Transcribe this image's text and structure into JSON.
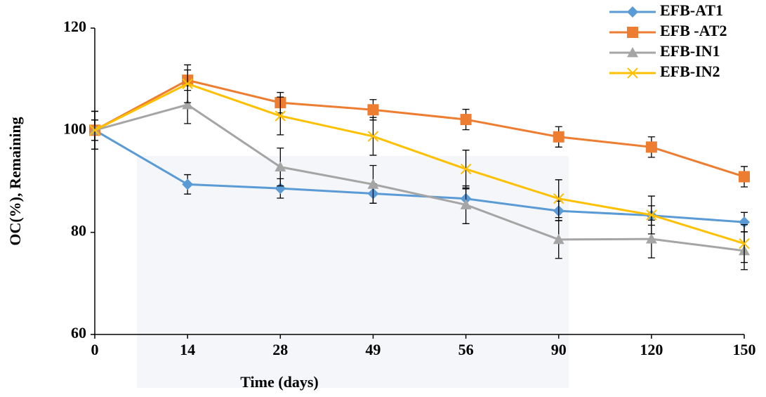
{
  "chart_data": {
    "type": "line",
    "x_label": "Time (days)",
    "y_label": "OC(%), Remaining",
    "categories": [
      "0",
      "14",
      "28",
      "49",
      "56",
      "90",
      "120",
      "150"
    ],
    "ylim": [
      60,
      120
    ],
    "yticks": [
      60,
      80,
      100,
      120
    ],
    "grid": false,
    "legend": "top-right",
    "series": [
      {
        "name": "EFB-AT1",
        "color": "#5b9bd5",
        "marker": "diamond",
        "values": [
          100,
          89.4,
          88.6,
          87.6,
          86.6,
          84.2,
          83.3,
          82.0
        ],
        "errors": [
          2,
          1.9,
          1.9,
          1.9,
          1.9,
          1.9,
          1.9,
          1.9
        ]
      },
      {
        "name": "EFB -AT2",
        "color": "#ed7d31",
        "marker": "square",
        "values": [
          100,
          109.8,
          105.4,
          104.0,
          102.1,
          98.7,
          96.7,
          90.9
        ],
        "errors": [
          2,
          2,
          2,
          2,
          2,
          2,
          2,
          2
        ]
      },
      {
        "name": "EFB-IN1",
        "color": "#a5a5a5",
        "marker": "triangle",
        "values": [
          100,
          105.0,
          92.8,
          89.4,
          85.4,
          78.6,
          78.7,
          76.4
        ],
        "errors": [
          3.7,
          3.7,
          3.7,
          3.7,
          3.7,
          3.7,
          3.7,
          3.7
        ]
      },
      {
        "name": "EFB-IN2",
        "color": "#ffc000",
        "marker": "x",
        "values": [
          100,
          109.1,
          102.8,
          98.8,
          92.4,
          86.6,
          83.4,
          77.8
        ],
        "errors": [
          3.7,
          3.7,
          3.7,
          3.7,
          3.7,
          3.7,
          3.7,
          3.7
        ]
      }
    ]
  }
}
